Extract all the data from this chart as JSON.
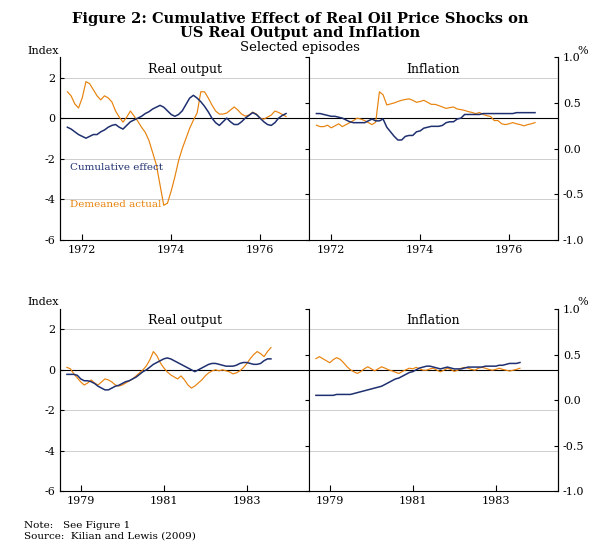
{
  "title_line1": "Figure 2: Cumulative Effect of Real Oil Price Shocks on",
  "title_line2": "US Real Output and Inflation",
  "subtitle": "Selected episodes",
  "title_fontsize": 10.5,
  "subtitle_fontsize": 9.5,
  "note_line1": "Note:   See Figure 1",
  "note_line2": "Source:  Kilian and Lewis (2009)",
  "orange_color": "#E8820C",
  "navy_color": "#1F3070",
  "grid_color": "#BBBBBB",
  "background_color": "#FFFFFF",
  "legend_cumulative": "Cumulative effect",
  "legend_demeaned": "Demeaned actual",
  "panels": [
    {
      "title": "Real output",
      "row": 0,
      "col": 0,
      "show_left_label": true,
      "show_right_label": false,
      "xlim": [
        1971.5,
        1977.1
      ],
      "xticks": [
        1972,
        1974,
        1976
      ],
      "ylim_left": [
        -6,
        3
      ],
      "ylim_right": [
        -1.0,
        1.0
      ],
      "yticks_left": [
        -6,
        -4,
        -2,
        0,
        2
      ],
      "yticks_right": [
        -1.0,
        -0.5,
        0.0,
        0.5,
        1.0
      ]
    },
    {
      "title": "Inflation",
      "row": 0,
      "col": 1,
      "show_left_label": false,
      "show_right_label": true,
      "xlim": [
        1971.5,
        1977.1
      ],
      "xticks": [
        1972,
        1974,
        1976
      ],
      "ylim_left": [
        -6,
        3
      ],
      "ylim_right": [
        -1.0,
        1.0
      ],
      "yticks_left": [
        -6,
        -4,
        -2,
        0,
        2
      ],
      "yticks_right": [
        -1.0,
        -0.5,
        0.0,
        0.5,
        1.0
      ]
    },
    {
      "title": "Real output",
      "row": 1,
      "col": 0,
      "show_left_label": true,
      "show_right_label": false,
      "xlim": [
        1978.5,
        1984.5
      ],
      "xticks": [
        1979,
        1981,
        1983
      ],
      "ylim_left": [
        -6,
        3
      ],
      "ylim_right": [
        -1.0,
        1.0
      ],
      "yticks_left": [
        -6,
        -4,
        -2,
        0,
        2
      ],
      "yticks_right": [
        -1.0,
        -0.5,
        0.0,
        0.5,
        1.0
      ]
    },
    {
      "title": "Inflation",
      "row": 1,
      "col": 1,
      "show_left_label": false,
      "show_right_label": true,
      "xlim": [
        1978.5,
        1984.5
      ],
      "xticks": [
        1979,
        1981,
        1983
      ],
      "ylim_left": [
        -6,
        3
      ],
      "ylim_right": [
        -1.0,
        1.0
      ],
      "yticks_left": [
        -6,
        -4,
        -2,
        0,
        2
      ],
      "yticks_right": [
        -1.0,
        -0.5,
        0.0,
        0.5,
        1.0
      ]
    }
  ],
  "series": {
    "tl_orange": [
      1.3,
      1.1,
      0.7,
      0.5,
      1.0,
      1.8,
      1.7,
      1.4,
      1.1,
      0.9,
      1.1,
      1.0,
      0.8,
      0.35,
      0.05,
      -0.2,
      0.05,
      0.35,
      0.1,
      -0.15,
      -0.45,
      -0.7,
      -1.1,
      -1.7,
      -2.3,
      -3.3,
      -4.3,
      -4.2,
      -3.6,
      -2.9,
      -2.1,
      -1.5,
      -1.0,
      -0.5,
      -0.1,
      0.25,
      1.3,
      1.3,
      1.0,
      0.65,
      0.35,
      0.2,
      0.2,
      0.25,
      0.4,
      0.55,
      0.4,
      0.2,
      0.1,
      0.15,
      0.3,
      0.2,
      0.0,
      -0.05,
      0.05,
      0.15,
      0.35,
      0.28,
      0.18,
      0.08
    ],
    "tl_navy": [
      -0.1,
      -0.12,
      -0.15,
      -0.18,
      -0.2,
      -0.22,
      -0.2,
      -0.18,
      -0.18,
      -0.15,
      -0.13,
      -0.1,
      -0.08,
      -0.07,
      -0.1,
      -0.12,
      -0.08,
      -0.04,
      -0.02,
      0.0,
      0.02,
      0.05,
      0.07,
      0.1,
      0.12,
      0.14,
      0.12,
      0.08,
      0.04,
      0.02,
      0.04,
      0.08,
      0.15,
      0.22,
      0.25,
      0.22,
      0.18,
      0.13,
      0.07,
      0.0,
      -0.05,
      -0.08,
      -0.04,
      0.0,
      -0.04,
      -0.07,
      -0.07,
      -0.04,
      0.0,
      0.03,
      0.06,
      0.04,
      0.0,
      -0.04,
      -0.07,
      -0.08,
      -0.05,
      0.0,
      0.03,
      0.05
    ],
    "tr_orange": [
      -0.35,
      -0.42,
      -0.42,
      -0.35,
      -0.48,
      -0.38,
      -0.28,
      -0.42,
      -0.32,
      -0.22,
      -0.12,
      0.0,
      -0.05,
      -0.12,
      -0.22,
      -0.32,
      -0.2,
      1.3,
      1.15,
      0.65,
      0.7,
      0.75,
      0.82,
      0.88,
      0.92,
      0.95,
      0.88,
      0.78,
      0.82,
      0.88,
      0.78,
      0.68,
      0.68,
      0.62,
      0.55,
      0.48,
      0.52,
      0.55,
      0.45,
      0.42,
      0.38,
      0.32,
      0.28,
      0.22,
      0.28,
      0.18,
      0.12,
      0.08,
      -0.12,
      -0.12,
      -0.28,
      -0.32,
      -0.28,
      -0.22,
      -0.28,
      -0.32,
      -0.38,
      -0.32,
      -0.28,
      -0.22
    ],
    "tr_navy": [
      0.05,
      0.05,
      0.04,
      0.03,
      0.02,
      0.02,
      0.01,
      0.0,
      -0.02,
      -0.04,
      -0.05,
      -0.05,
      -0.05,
      -0.05,
      -0.03,
      -0.01,
      -0.03,
      -0.03,
      -0.01,
      -0.1,
      -0.15,
      -0.2,
      -0.24,
      -0.24,
      -0.2,
      -0.19,
      -0.19,
      -0.15,
      -0.14,
      -0.11,
      -0.1,
      -0.09,
      -0.09,
      -0.09,
      -0.08,
      -0.05,
      -0.04,
      -0.04,
      -0.01,
      0.0,
      0.04,
      0.04,
      0.04,
      0.04,
      0.04,
      0.05,
      0.05,
      0.05,
      0.05,
      0.05,
      0.05,
      0.05,
      0.05,
      0.05,
      0.06,
      0.06,
      0.06,
      0.06,
      0.06,
      0.06
    ],
    "bl_orange": [
      0.12,
      0.05,
      -0.2,
      -0.4,
      -0.6,
      -0.75,
      -0.65,
      -0.5,
      -0.65,
      -0.75,
      -0.6,
      -0.45,
      -0.5,
      -0.6,
      -0.75,
      -0.8,
      -0.75,
      -0.65,
      -0.55,
      -0.45,
      -0.3,
      -0.15,
      0.0,
      0.2,
      0.5,
      0.9,
      0.7,
      0.35,
      0.1,
      -0.1,
      -0.25,
      -0.35,
      -0.45,
      -0.3,
      -0.5,
      -0.75,
      -0.9,
      -0.8,
      -0.65,
      -0.5,
      -0.3,
      -0.15,
      -0.05,
      0.0,
      -0.05,
      0.0,
      -0.05,
      -0.1,
      -0.2,
      -0.15,
      -0.05,
      0.1,
      0.3,
      0.55,
      0.75,
      0.9,
      0.8,
      0.65,
      0.9,
      1.1
    ],
    "bl_navy": [
      -0.05,
      -0.05,
      -0.05,
      -0.06,
      -0.1,
      -0.12,
      -0.12,
      -0.13,
      -0.15,
      -0.18,
      -0.2,
      -0.22,
      -0.22,
      -0.2,
      -0.18,
      -0.17,
      -0.15,
      -0.13,
      -0.12,
      -0.1,
      -0.08,
      -0.05,
      -0.02,
      0.0,
      0.03,
      0.06,
      0.08,
      0.1,
      0.12,
      0.13,
      0.12,
      0.1,
      0.08,
      0.06,
      0.04,
      0.02,
      0.0,
      -0.02,
      0.0,
      0.02,
      0.04,
      0.06,
      0.07,
      0.07,
      0.06,
      0.05,
      0.04,
      0.04,
      0.04,
      0.05,
      0.07,
      0.08,
      0.08,
      0.07,
      0.06,
      0.06,
      0.07,
      0.1,
      0.12,
      0.12
    ],
    "br_orange": [
      0.55,
      0.65,
      0.55,
      0.45,
      0.35,
      0.5,
      0.6,
      0.52,
      0.35,
      0.15,
      0.0,
      -0.1,
      -0.18,
      -0.08,
      0.05,
      0.15,
      0.05,
      -0.05,
      0.05,
      0.15,
      0.08,
      0.0,
      -0.05,
      -0.12,
      -0.18,
      -0.08,
      0.0,
      0.08,
      0.05,
      0.12,
      0.05,
      -0.02,
      -0.02,
      0.05,
      0.08,
      -0.02,
      -0.1,
      -0.02,
      0.08,
      0.02,
      -0.08,
      -0.02,
      0.08,
      0.12,
      0.08,
      0.02,
      -0.02,
      0.08,
      0.12,
      0.08,
      0.02,
      -0.02,
      0.02,
      0.08,
      0.02,
      -0.02,
      -0.06,
      -0.02,
      0.02,
      0.08
    ],
    "br_navy": [
      -0.28,
      -0.28,
      -0.28,
      -0.28,
      -0.28,
      -0.28,
      -0.27,
      -0.27,
      -0.27,
      -0.27,
      -0.27,
      -0.26,
      -0.25,
      -0.24,
      -0.23,
      -0.22,
      -0.21,
      -0.2,
      -0.19,
      -0.18,
      -0.16,
      -0.14,
      -0.12,
      -0.1,
      -0.09,
      -0.07,
      -0.05,
      -0.03,
      -0.02,
      0.0,
      0.02,
      0.03,
      0.04,
      0.04,
      0.03,
      0.02,
      0.01,
      0.02,
      0.03,
      0.02,
      0.01,
      0.01,
      0.01,
      0.02,
      0.03,
      0.03,
      0.03,
      0.03,
      0.03,
      0.04,
      0.04,
      0.04,
      0.04,
      0.05,
      0.05,
      0.06,
      0.07,
      0.07,
      0.07,
      0.08
    ]
  }
}
